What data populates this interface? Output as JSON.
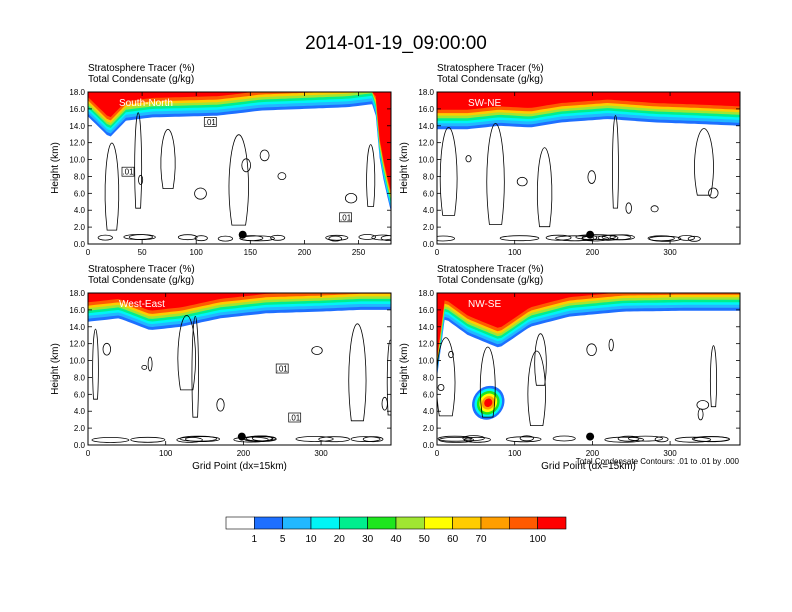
{
  "page": {
    "title": "2014-01-19_09:00:00",
    "contour_note": "Total Condensate Contours: .01 to .01 by .000"
  },
  "colors": {
    "scale": [
      "#ffffff",
      "#1e6fff",
      "#22b8ff",
      "#00f5f5",
      "#00ee8e",
      "#1ee61e",
      "#a0e632",
      "#ffff00",
      "#ffcc00",
      "#ff9e00",
      "#ff5a00",
      "#ff0000"
    ]
  },
  "chart_data": [
    {
      "type": "contour",
      "label_top": "Stratosphere Tracer   (%)",
      "label_bottom": "Total Condensate   (g/kg)",
      "inset_label": "South-North",
      "xlabel": "",
      "ylabel": "Height (km)",
      "xlim": [
        0,
        280
      ],
      "ylim": [
        0,
        18
      ],
      "xticks": [
        0,
        50,
        100,
        150,
        200,
        250
      ],
      "xticklabels": [
        "0",
        "50",
        "100",
        "150",
        "200",
        "250"
      ],
      "yticks": [
        0,
        2,
        4,
        6,
        8,
        10,
        12,
        14,
        16,
        18
      ],
      "yticklabels": [
        "0.0",
        "2.0",
        "4.0",
        "6.0",
        "8.0",
        "10.0",
        "12.0",
        "14.0",
        "16.0",
        "18.0"
      ],
      "contour_labels": [
        {
          "text": ".01",
          "x": 113,
          "y": 14.4
        },
        {
          "text": ".01",
          "x": 37,
          "y": 8.5
        },
        {
          "text": ".01",
          "x": 238,
          "y": 3.1
        }
      ],
      "marker": {
        "x": 143,
        "y": 1.1
      },
      "tracer_base": [
        {
          "x": 0,
          "y": 15.1
        },
        {
          "x": 20,
          "y": 12.6
        },
        {
          "x": 35,
          "y": 14.6
        },
        {
          "x": 60,
          "y": 15.0
        },
        {
          "x": 120,
          "y": 15.2
        },
        {
          "x": 160,
          "y": 15.8
        },
        {
          "x": 200,
          "y": 16.0
        },
        {
          "x": 240,
          "y": 16.2
        },
        {
          "x": 265,
          "y": 16.6
        },
        {
          "x": 270,
          "y": 9.5
        },
        {
          "x": 275,
          "y": 6.5
        },
        {
          "x": 280,
          "y": 3.8
        }
      ]
    },
    {
      "type": "contour",
      "label_top": "Stratosphere Tracer   (%)",
      "label_bottom": "Total Condensate   (g/kg)",
      "inset_label": "SW-NE",
      "xlabel": "",
      "ylabel": "Height (km)",
      "xlim": [
        0,
        390
      ],
      "ylim": [
        0,
        18
      ],
      "xticks": [
        0,
        100,
        200,
        300
      ],
      "xticklabels": [
        "0",
        "100",
        "200",
        "300"
      ],
      "yticks": [
        0,
        2,
        4,
        6,
        8,
        10,
        12,
        14,
        16,
        18
      ],
      "yticklabels": [
        "0.0",
        "2.0",
        "4.0",
        "6.0",
        "8.0",
        "10.0",
        "12.0",
        "14.0",
        "16.0",
        "18.0"
      ],
      "contour_labels": [],
      "marker": {
        "x": 197,
        "y": 1.1
      },
      "tracer_base": [
        {
          "x": 0,
          "y": 13.6
        },
        {
          "x": 40,
          "y": 13.6
        },
        {
          "x": 80,
          "y": 14.0
        },
        {
          "x": 120,
          "y": 13.8
        },
        {
          "x": 160,
          "y": 14.4
        },
        {
          "x": 220,
          "y": 14.8
        },
        {
          "x": 280,
          "y": 14.4
        },
        {
          "x": 340,
          "y": 14.2
        },
        {
          "x": 390,
          "y": 14.0
        }
      ]
    },
    {
      "type": "contour",
      "label_top": "Stratosphere Tracer   (%)",
      "label_bottom": "Total Condensate   (g/kg)",
      "inset_label": "West-East",
      "xlabel": "Grid Point (dx=15km)",
      "ylabel": "Height (km)",
      "xlim": [
        0,
        390
      ],
      "ylim": [
        0,
        18
      ],
      "xticks": [
        0,
        100,
        200,
        300
      ],
      "xticklabels": [
        "0",
        "100",
        "200",
        "300"
      ],
      "yticks": [
        0,
        2,
        4,
        6,
        8,
        10,
        12,
        14,
        16,
        18
      ],
      "yticklabels": [
        "0.0",
        "2.0",
        "4.0",
        "6.0",
        "8.0",
        "10.0",
        "12.0",
        "14.0",
        "16.0",
        "18.0"
      ],
      "contour_labels": [
        {
          "text": ".01",
          "x": 250,
          "y": 9.0
        },
        {
          "text": ".01",
          "x": 266,
          "y": 3.2
        }
      ],
      "marker": {
        "x": 198,
        "y": 1.0
      },
      "tracer_base": [
        {
          "x": 0,
          "y": 14.6
        },
        {
          "x": 40,
          "y": 15.0
        },
        {
          "x": 80,
          "y": 13.6
        },
        {
          "x": 120,
          "y": 14.0
        },
        {
          "x": 170,
          "y": 15.0
        },
        {
          "x": 230,
          "y": 15.6
        },
        {
          "x": 300,
          "y": 15.8
        },
        {
          "x": 350,
          "y": 16.0
        },
        {
          "x": 390,
          "y": 16.0
        }
      ]
    },
    {
      "type": "contour",
      "label_top": "Stratosphere Tracer   (%)",
      "label_bottom": "Total Condensate   (g/kg)",
      "inset_label": "NW-SE",
      "xlabel": "Grid Point (dx=15km)",
      "ylabel": "Height (km)",
      "xlim": [
        0,
        390
      ],
      "ylim": [
        0,
        18
      ],
      "xticks": [
        0,
        100,
        200,
        300
      ],
      "xticklabels": [
        "0",
        "100",
        "200",
        "300"
      ],
      "yticks": [
        0,
        2,
        4,
        6,
        8,
        10,
        12,
        14,
        16,
        18
      ],
      "yticklabels": [
        "0.0",
        "2.0",
        "4.0",
        "6.0",
        "8.0",
        "10.0",
        "12.0",
        "14.0",
        "16.0",
        "18.0"
      ],
      "contour_labels": [],
      "marker": {
        "x": 197,
        "y": 1.0
      },
      "tracer_base": [
        {
          "x": 0,
          "y": 8.0
        },
        {
          "x": 10,
          "y": 15.0
        },
        {
          "x": 40,
          "y": 13.0
        },
        {
          "x": 80,
          "y": 11.5
        },
        {
          "x": 120,
          "y": 14.0
        },
        {
          "x": 170,
          "y": 15.2
        },
        {
          "x": 240,
          "y": 15.8
        },
        {
          "x": 320,
          "y": 15.9
        },
        {
          "x": 390,
          "y": 15.9
        }
      ],
      "blob": {
        "x": 66,
        "y": 5.0,
        "rx": 20,
        "ry": 1.6
      }
    }
  ],
  "colorbar": {
    "labels": [
      "1",
      "5",
      "10",
      "20",
      "30",
      "40",
      "50",
      "60",
      "70",
      "100"
    ]
  }
}
